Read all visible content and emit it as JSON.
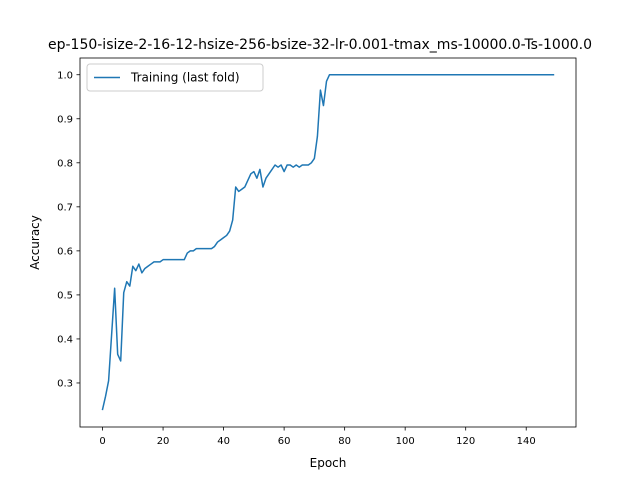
{
  "chart_data": {
    "type": "line",
    "title": "ep-150-isize-2-16-12-hsize-256-bsize-32-lr-0.001-tmax_ms-10000.0-Ts-1000.0",
    "xlabel": "Epoch",
    "ylabel": "Accuracy",
    "xlim": [
      -7.45,
      156.45
    ],
    "ylim": [
      0.2,
      1.038
    ],
    "xticks": [
      0,
      20,
      40,
      60,
      80,
      100,
      120,
      140
    ],
    "yticks": [
      0.3,
      0.4,
      0.5,
      0.6,
      0.7,
      0.8,
      0.9,
      1.0
    ],
    "xtick_labels": [
      "0",
      "20",
      "40",
      "60",
      "80",
      "100",
      "120",
      "140"
    ],
    "ytick_labels": [
      "0.3",
      "0.4",
      "0.5",
      "0.6",
      "0.7",
      "0.8",
      "0.9",
      "1.0"
    ],
    "grid": false,
    "legend_position": "top-left",
    "series": [
      {
        "name": "Training (last fold)",
        "color": "#1f77b4",
        "points": [
          [
            0,
            0.24
          ],
          [
            1,
            0.27
          ],
          [
            2,
            0.305
          ],
          [
            3,
            0.41
          ],
          [
            4,
            0.515
          ],
          [
            5,
            0.365
          ],
          [
            6,
            0.35
          ],
          [
            7,
            0.505
          ],
          [
            8,
            0.53
          ],
          [
            9,
            0.52
          ],
          [
            10,
            0.565
          ],
          [
            11,
            0.555
          ],
          [
            12,
            0.57
          ],
          [
            13,
            0.55
          ],
          [
            14,
            0.56
          ],
          [
            15,
            0.565
          ],
          [
            16,
            0.57
          ],
          [
            17,
            0.575
          ],
          [
            18,
            0.575
          ],
          [
            19,
            0.575
          ],
          [
            20,
            0.58
          ],
          [
            21,
            0.58
          ],
          [
            22,
            0.58
          ],
          [
            23,
            0.58
          ],
          [
            24,
            0.58
          ],
          [
            25,
            0.58
          ],
          [
            26,
            0.58
          ],
          [
            27,
            0.58
          ],
          [
            28,
            0.595
          ],
          [
            29,
            0.6
          ],
          [
            30,
            0.6
          ],
          [
            31,
            0.605
          ],
          [
            32,
            0.605
          ],
          [
            33,
            0.605
          ],
          [
            34,
            0.605
          ],
          [
            35,
            0.605
          ],
          [
            36,
            0.605
          ],
          [
            37,
            0.61
          ],
          [
            38,
            0.62
          ],
          [
            39,
            0.625
          ],
          [
            40,
            0.63
          ],
          [
            41,
            0.635
          ],
          [
            42,
            0.645
          ],
          [
            43,
            0.67
          ],
          [
            44,
            0.745
          ],
          [
            45,
            0.735
          ],
          [
            46,
            0.74
          ],
          [
            47,
            0.745
          ],
          [
            48,
            0.76
          ],
          [
            49,
            0.775
          ],
          [
            50,
            0.78
          ],
          [
            51,
            0.765
          ],
          [
            52,
            0.785
          ],
          [
            53,
            0.745
          ],
          [
            54,
            0.765
          ],
          [
            55,
            0.775
          ],
          [
            56,
            0.785
          ],
          [
            57,
            0.795
          ],
          [
            58,
            0.79
          ],
          [
            59,
            0.795
          ],
          [
            60,
            0.78
          ],
          [
            61,
            0.795
          ],
          [
            62,
            0.795
          ],
          [
            63,
            0.79
          ],
          [
            64,
            0.795
          ],
          [
            65,
            0.79
          ],
          [
            66,
            0.795
          ],
          [
            67,
            0.795
          ],
          [
            68,
            0.795
          ],
          [
            69,
            0.8
          ],
          [
            70,
            0.81
          ],
          [
            71,
            0.86
          ],
          [
            72,
            0.965
          ],
          [
            73,
            0.93
          ],
          [
            74,
            0.985
          ],
          [
            75,
            1.0
          ],
          [
            76,
            1.0
          ],
          [
            80,
            1.0
          ],
          [
            90,
            1.0
          ],
          [
            100,
            1.0
          ],
          [
            110,
            1.0
          ],
          [
            120,
            1.0
          ],
          [
            130,
            1.0
          ],
          [
            140,
            1.0
          ],
          [
            149,
            1.0
          ]
        ]
      }
    ]
  }
}
